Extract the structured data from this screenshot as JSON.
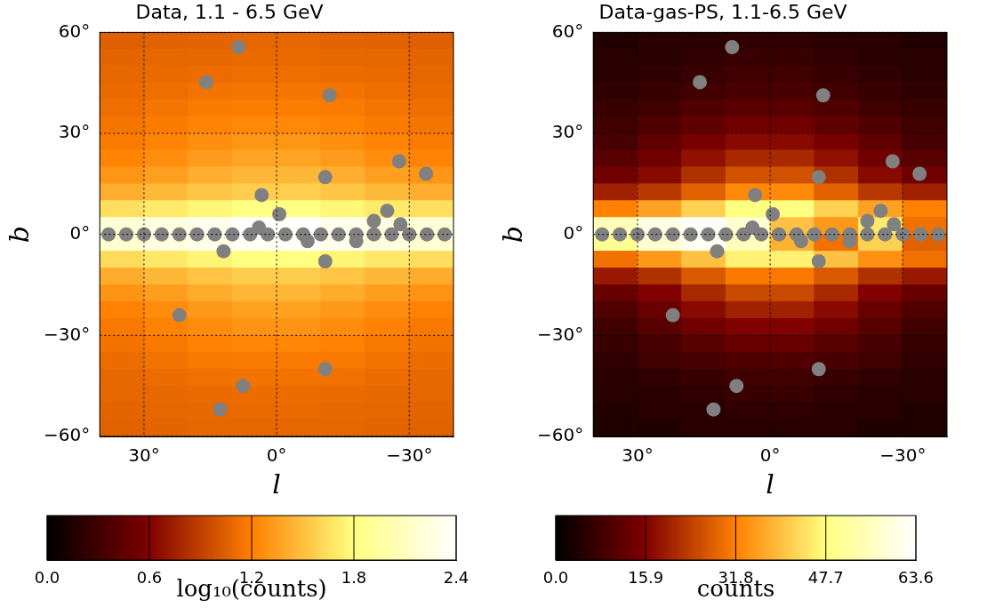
{
  "chart_data": [
    {
      "type": "heatmap",
      "title": "Data, 1.1 - 6.5 GeV",
      "x_label": "l",
      "y_label": "b",
      "xlim": [
        40,
        -40
      ],
      "ylim": [
        -60,
        60
      ],
      "xticks": [
        {
          "value": 30,
          "label": "30°"
        },
        {
          "value": 0,
          "label": "0°"
        },
        {
          "value": -30,
          "label": "−30°"
        }
      ],
      "yticks": [
        {
          "value": -60,
          "label": "−60°"
        },
        {
          "value": -30,
          "label": "−30°"
        },
        {
          "value": 0,
          "label": "0°"
        },
        {
          "value": 30,
          "label": "30°"
        },
        {
          "value": 60,
          "label": "60°"
        }
      ],
      "grid": true,
      "cells": {
        "l_edges": [
          40,
          30,
          20,
          10,
          0,
          -10,
          -20,
          -30,
          -40
        ],
        "b_edges": [
          60,
          55,
          50,
          45,
          40,
          35,
          30,
          25,
          20,
          15,
          10,
          5,
          0,
          -5,
          -10,
          -15,
          -20,
          -25,
          -30,
          -35,
          -40,
          -45,
          -50,
          -55,
          -60
        ],
        "values": [
          [
            1.05,
            1.06,
            1.07,
            1.08,
            1.08,
            1.07,
            1.06,
            1.05
          ],
          [
            1.07,
            1.08,
            1.09,
            1.1,
            1.1,
            1.09,
            1.08,
            1.07
          ],
          [
            1.08,
            1.1,
            1.11,
            1.12,
            1.12,
            1.11,
            1.1,
            1.08
          ],
          [
            1.1,
            1.12,
            1.14,
            1.15,
            1.15,
            1.14,
            1.12,
            1.1
          ],
          [
            1.12,
            1.15,
            1.18,
            1.19,
            1.19,
            1.18,
            1.15,
            1.12
          ],
          [
            1.15,
            1.18,
            1.22,
            1.24,
            1.24,
            1.22,
            1.18,
            1.15
          ],
          [
            1.18,
            1.22,
            1.27,
            1.3,
            1.3,
            1.27,
            1.22,
            1.18
          ],
          [
            1.22,
            1.27,
            1.33,
            1.37,
            1.37,
            1.33,
            1.27,
            1.22
          ],
          [
            1.3,
            1.35,
            1.42,
            1.46,
            1.46,
            1.42,
            1.35,
            1.3
          ],
          [
            1.42,
            1.47,
            1.53,
            1.57,
            1.57,
            1.53,
            1.47,
            1.42
          ],
          [
            1.65,
            1.7,
            1.76,
            1.82,
            1.82,
            1.76,
            1.7,
            1.65
          ],
          [
            2.2,
            2.25,
            2.3,
            2.38,
            2.38,
            2.3,
            2.25,
            2.2
          ],
          [
            2.18,
            2.24,
            2.29,
            2.36,
            2.37,
            2.3,
            2.24,
            2.19
          ],
          [
            1.63,
            1.69,
            1.75,
            1.8,
            1.81,
            1.75,
            1.69,
            1.64
          ],
          [
            1.41,
            1.46,
            1.52,
            1.56,
            1.56,
            1.52,
            1.46,
            1.41
          ],
          [
            1.29,
            1.34,
            1.41,
            1.45,
            1.45,
            1.41,
            1.34,
            1.29
          ],
          [
            1.21,
            1.26,
            1.32,
            1.36,
            1.36,
            1.32,
            1.26,
            1.21
          ],
          [
            1.17,
            1.21,
            1.26,
            1.29,
            1.29,
            1.26,
            1.21,
            1.17
          ],
          [
            1.14,
            1.17,
            1.21,
            1.23,
            1.23,
            1.21,
            1.17,
            1.14
          ],
          [
            1.11,
            1.14,
            1.17,
            1.18,
            1.18,
            1.17,
            1.14,
            1.11
          ],
          [
            1.09,
            1.11,
            1.13,
            1.14,
            1.14,
            1.13,
            1.11,
            1.09
          ],
          [
            1.08,
            1.09,
            1.1,
            1.11,
            1.11,
            1.1,
            1.09,
            1.08
          ],
          [
            1.07,
            1.08,
            1.09,
            1.1,
            1.1,
            1.09,
            1.08,
            1.07
          ],
          [
            1.06,
            1.07,
            1.08,
            1.08,
            1.08,
            1.08,
            1.07,
            1.06
          ]
        ]
      },
      "colorbar": {
        "label": "log₁₀(counts)",
        "lim": [
          0,
          2.4
        ],
        "ticks": [
          {
            "value": 0,
            "label": "0.0"
          },
          0.6,
          1.2,
          1.8,
          2.4
        ]
      },
      "masked_sources": {
        "color": "#808080",
        "points": [
          [
            8.6,
            55.6
          ],
          [
            15.9,
            45.2
          ],
          [
            -12,
            41.3
          ],
          [
            -27.7,
            21.7
          ],
          [
            -33.8,
            18
          ],
          [
            -11,
            17
          ],
          [
            3.4,
            11.7
          ],
          [
            -0.6,
            6
          ],
          [
            -25,
            7
          ],
          [
            -22,
            4
          ],
          [
            -28,
            3
          ],
          [
            38,
            0
          ],
          [
            34,
            0
          ],
          [
            30,
            0
          ],
          [
            26,
            0
          ],
          [
            22,
            0
          ],
          [
            18,
            0
          ],
          [
            14,
            0
          ],
          [
            10,
            0
          ],
          [
            6,
            0
          ],
          [
            2,
            0
          ],
          [
            -2,
            0
          ],
          [
            -6,
            0
          ],
          [
            -10,
            0
          ],
          [
            -14,
            0
          ],
          [
            -18,
            0
          ],
          [
            -22,
            0
          ],
          [
            -26,
            0
          ],
          [
            -30,
            0
          ],
          [
            -34,
            0
          ],
          [
            -38,
            0
          ],
          [
            12,
            -5
          ],
          [
            -11,
            -8
          ],
          [
            22,
            -24
          ],
          [
            -11,
            -40
          ],
          [
            7.6,
            -45
          ],
          [
            12.8,
            -52
          ],
          [
            4,
            2
          ],
          [
            -7,
            -2
          ],
          [
            -18,
            -2
          ]
        ]
      }
    },
    {
      "type": "heatmap",
      "title": "Data-gas-PS, 1.1-6.5 GeV",
      "x_label": "l",
      "y_label": "b",
      "xlim": [
        40,
        -40
      ],
      "ylim": [
        -60,
        60
      ],
      "xticks": [
        {
          "value": 30,
          "label": "30°"
        },
        {
          "value": 0,
          "label": "0°"
        },
        {
          "value": -30,
          "label": "−30°"
        }
      ],
      "yticks": [
        {
          "value": -60,
          "label": "−60°"
        },
        {
          "value": -30,
          "label": "−30°"
        },
        {
          "value": 0,
          "label": "0°"
        },
        {
          "value": 30,
          "label": "30°"
        },
        {
          "value": 60,
          "label": "60°"
        }
      ],
      "grid": true,
      "cells": {
        "l_edges": [
          40,
          30,
          20,
          10,
          0,
          -10,
          -20,
          -30,
          -40
        ],
        "b_edges": [
          60,
          55,
          50,
          45,
          40,
          35,
          30,
          25,
          20,
          15,
          10,
          5,
          0,
          -5,
          -10,
          -15,
          -20,
          -25,
          -30,
          -35,
          -40,
          -45,
          -50,
          -55,
          -60
        ],
        "values": [
          [
            4,
            5,
            5,
            6,
            6,
            5,
            5,
            4
          ],
          [
            5,
            5,
            6,
            7,
            7,
            6,
            5,
            5
          ],
          [
            5,
            6,
            7,
            8,
            8,
            7,
            6,
            5
          ],
          [
            6,
            7,
            8,
            9,
            9,
            8,
            7,
            6
          ],
          [
            7,
            8,
            10,
            11,
            11,
            10,
            8,
            7
          ],
          [
            8,
            10,
            12,
            14,
            14,
            12,
            10,
            8
          ],
          [
            9,
            12,
            15,
            17,
            17,
            15,
            12,
            9
          ],
          [
            11,
            14,
            18,
            21,
            21,
            18,
            14,
            11
          ],
          [
            14,
            17,
            22,
            26,
            26,
            22,
            17,
            14
          ],
          [
            20,
            23,
            28,
            33,
            33,
            28,
            23,
            20
          ],
          [
            32,
            36,
            42,
            48,
            48,
            42,
            36,
            32
          ],
          [
            55,
            60,
            63,
            58,
            40,
            35,
            45,
            30
          ],
          [
            50,
            58,
            62,
            55,
            38,
            30,
            42,
            28
          ],
          [
            30,
            35,
            40,
            46,
            46,
            40,
            34,
            30
          ],
          [
            19,
            22,
            27,
            31,
            31,
            27,
            22,
            19
          ],
          [
            13,
            16,
            21,
            25,
            25,
            21,
            16,
            13
          ],
          [
            10,
            13,
            17,
            20,
            20,
            17,
            13,
            10
          ],
          [
            8,
            11,
            14,
            16,
            16,
            14,
            11,
            8
          ],
          [
            7,
            9,
            11,
            13,
            13,
            11,
            9,
            7
          ],
          [
            6,
            8,
            9,
            10,
            10,
            9,
            8,
            6
          ],
          [
            5,
            6,
            7,
            8,
            8,
            7,
            6,
            5
          ],
          [
            5,
            5,
            6,
            7,
            7,
            6,
            5,
            5
          ],
          [
            4,
            5,
            5,
            6,
            6,
            5,
            5,
            4
          ],
          [
            4,
            4,
            5,
            5,
            5,
            5,
            4,
            4
          ]
        ]
      },
      "colorbar": {
        "label": "counts",
        "lim": [
          0,
          63.6
        ],
        "ticks": [
          {
            "value": 0,
            "label": "0.0"
          },
          15.9,
          31.8,
          47.7,
          63.6
        ]
      },
      "masked_sources": {
        "color": "#808080",
        "points": [
          [
            8.6,
            55.6
          ],
          [
            15.9,
            45.2
          ],
          [
            -12,
            41.3
          ],
          [
            -27.7,
            21.7
          ],
          [
            -33.8,
            18
          ],
          [
            -11,
            17
          ],
          [
            3.4,
            11.7
          ],
          [
            -0.6,
            6
          ],
          [
            -25,
            7
          ],
          [
            -22,
            4
          ],
          [
            -28,
            3
          ],
          [
            38,
            0
          ],
          [
            34,
            0
          ],
          [
            30,
            0
          ],
          [
            26,
            0
          ],
          [
            22,
            0
          ],
          [
            18,
            0
          ],
          [
            14,
            0
          ],
          [
            10,
            0
          ],
          [
            6,
            0
          ],
          [
            2,
            0
          ],
          [
            -2,
            0
          ],
          [
            -6,
            0
          ],
          [
            -10,
            0
          ],
          [
            -14,
            0
          ],
          [
            -18,
            0
          ],
          [
            -22,
            0
          ],
          [
            -26,
            0
          ],
          [
            -30,
            0
          ],
          [
            -34,
            0
          ],
          [
            -38,
            0
          ],
          [
            12,
            -5
          ],
          [
            -11,
            -8
          ],
          [
            22,
            -24
          ],
          [
            -11,
            -40
          ],
          [
            7.6,
            -45
          ],
          [
            12.8,
            -52
          ],
          [
            4,
            2
          ],
          [
            -7,
            -2
          ],
          [
            -18,
            -2
          ]
        ]
      }
    }
  ]
}
